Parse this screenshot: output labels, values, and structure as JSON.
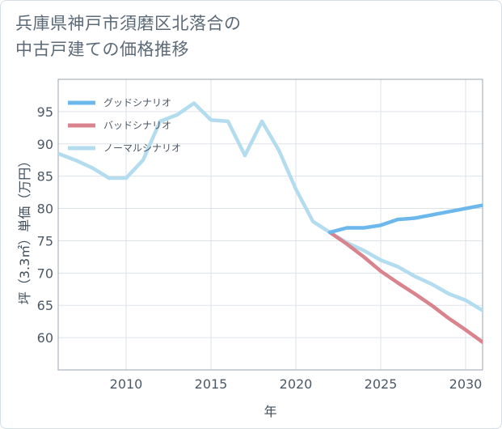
{
  "title_lines": [
    "兵庫県神戸市須磨区北落合の",
    "中古戸建ての価格推移"
  ],
  "chart_data": {
    "type": "line",
    "title": "兵庫県神戸市須磨区北落合の中古戸建ての価格推移",
    "xlabel": "年",
    "ylabel": "坪（3.3㎡）単価（万円）",
    "xlim": [
      2006,
      2031
    ],
    "ylim": [
      55,
      100
    ],
    "xticks": [
      2010,
      2015,
      2020,
      2025,
      2030
    ],
    "yticks": [
      60,
      65,
      70,
      75,
      80,
      85,
      90,
      95
    ],
    "legend_position": "top-left",
    "series": [
      {
        "name": "グッドシナリオ",
        "color": "#6cb8ec",
        "x": [
          2022,
          2023,
          2024,
          2025,
          2026,
          2027,
          2028,
          2029,
          2030,
          2031
        ],
        "y": [
          76.3,
          77.0,
          77.0,
          77.4,
          78.3,
          78.5,
          79.0,
          79.5,
          80.0,
          80.5
        ]
      },
      {
        "name": "バッドシナリオ",
        "color": "#d9838c",
        "x": [
          2022,
          2023,
          2024,
          2025,
          2026,
          2027,
          2028,
          2029,
          2030,
          2031
        ],
        "y": [
          76.3,
          74.5,
          72.5,
          70.3,
          68.5,
          66.8,
          65.0,
          63.0,
          61.2,
          59.3
        ]
      },
      {
        "name": "ノーマルシナリオ",
        "color": "#b3dcef",
        "x": [
          2006,
          2007,
          2008,
          2009,
          2010,
          2011,
          2012,
          2013,
          2014,
          2015,
          2016,
          2017,
          2018,
          2019,
          2020,
          2021,
          2022,
          2023,
          2024,
          2025,
          2026,
          2027,
          2028,
          2029,
          2030,
          2031
        ],
        "y": [
          88.5,
          87.5,
          86.3,
          84.7,
          84.7,
          87.5,
          93.5,
          94.5,
          96.3,
          93.7,
          93.5,
          88.2,
          93.5,
          89.0,
          83.0,
          78.0,
          76.3,
          74.7,
          73.5,
          72.0,
          71.0,
          69.5,
          68.3,
          66.8,
          65.8,
          64.2
        ]
      }
    ]
  }
}
